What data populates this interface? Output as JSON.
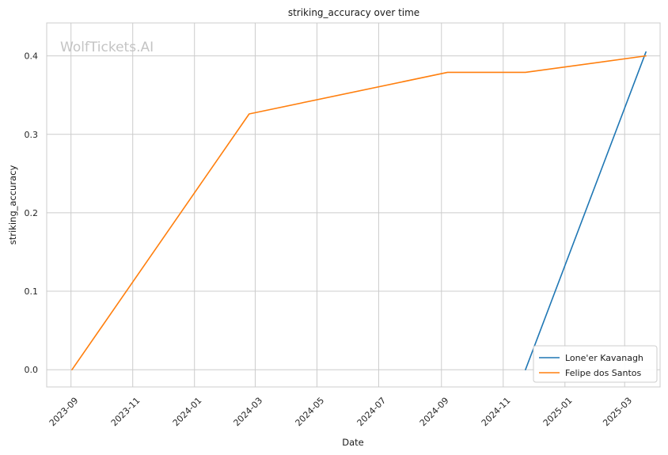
{
  "watermark": "WolfTickets.AI",
  "chart_data": {
    "type": "line",
    "title": "striking_accuracy over time",
    "xlabel": "Date",
    "ylabel": "striking_accuracy",
    "x_ticks": [
      "2023-09",
      "2023-11",
      "2024-01",
      "2024-03",
      "2024-05",
      "2024-07",
      "2024-09",
      "2024-11",
      "2025-01",
      "2025-03"
    ],
    "y_ticks": [
      0.0,
      0.1,
      0.2,
      0.3,
      0.4
    ],
    "y_tick_labels": [
      "0.0",
      "0.1",
      "0.2",
      "0.3",
      "0.4"
    ],
    "xlim": [
      "2023-08-08",
      "2025-04-05"
    ],
    "ylim": [
      -0.022,
      0.442
    ],
    "grid": true,
    "legend_position": "lower-right",
    "series": [
      {
        "name": "Lone'er Kavanagh",
        "color": "#1f77b4",
        "points": [
          {
            "x": "2024-11-23",
            "y": 0.0
          },
          {
            "x": "2025-03-22",
            "y": 0.405
          }
        ]
      },
      {
        "name": "Felipe dos Santos",
        "color": "#ff7f0e",
        "points": [
          {
            "x": "2023-09-02",
            "y": 0.0
          },
          {
            "x": "2024-02-24",
            "y": 0.326
          },
          {
            "x": "2024-09-07",
            "y": 0.379
          },
          {
            "x": "2024-11-23",
            "y": 0.379
          },
          {
            "x": "2025-03-22",
            "y": 0.4
          }
        ]
      }
    ]
  }
}
